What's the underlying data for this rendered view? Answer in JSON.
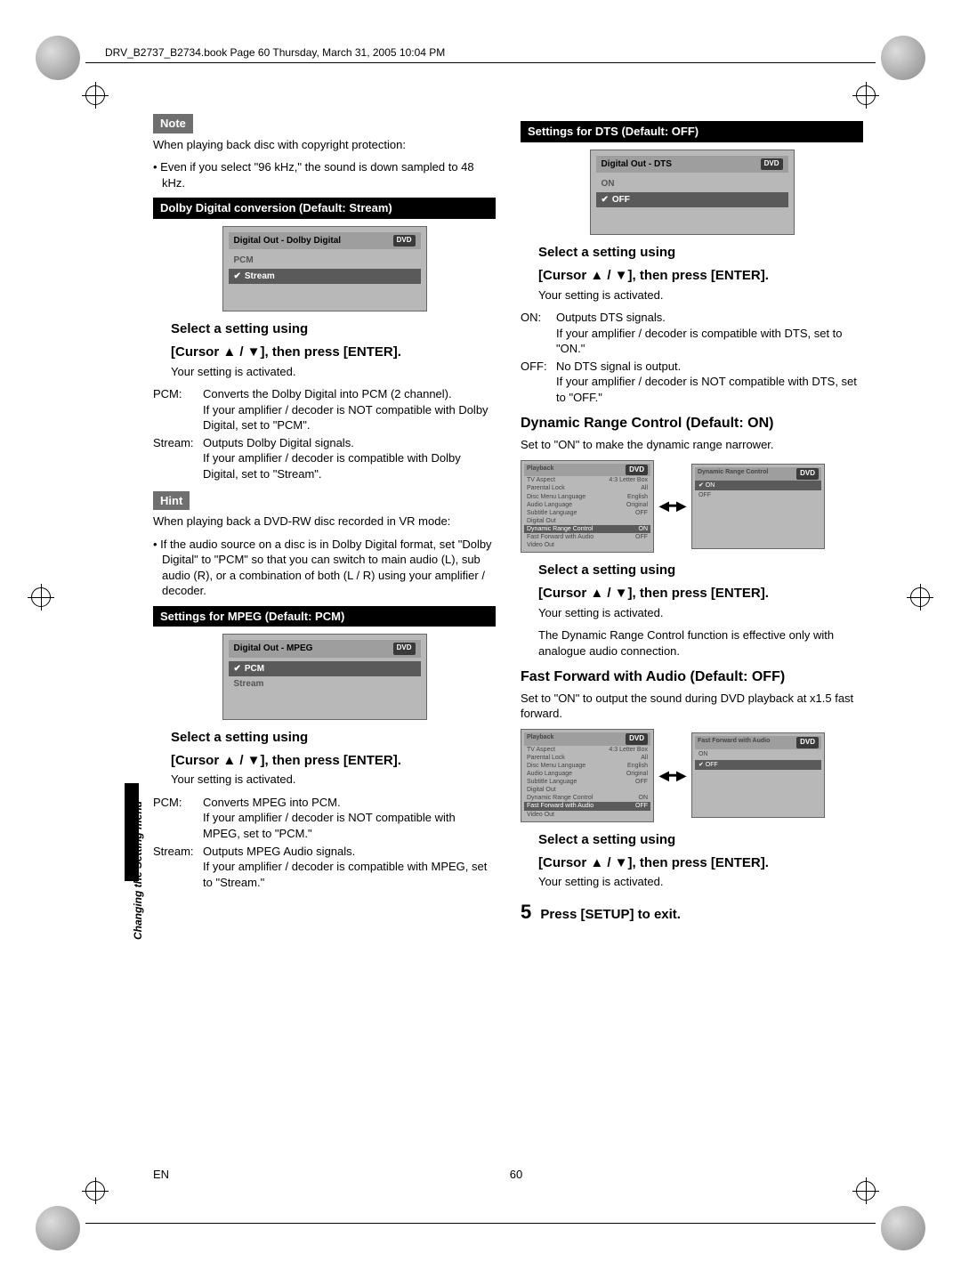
{
  "header_path": "DRV_B2737_B2734.book  Page 60  Thursday, March 31, 2005  10:04 PM",
  "page_number": "60",
  "lang_code": "EN",
  "side_caption": "Changing the Setting menu",
  "left": {
    "note_label": "Note",
    "note_intro": "When playing back disc with copyright protection:",
    "note_bullet": "• Even if you select \"96 kHz,\" the sound is down sampled to 48 kHz.",
    "bar_dolby": "Dolby Digital conversion (Default: Stream)",
    "osd_dolby": {
      "title": "Digital Out - Dolby Digital",
      "badge": "DVD",
      "opts": [
        "PCM",
        "Stream"
      ],
      "selected": "Stream"
    },
    "instr_line1": "Select a setting using",
    "instr_line2": "[Cursor ▲ / ▼], then press [ENTER].",
    "instr_sub": "Your setting is activated.",
    "def_pcm_key": "PCM:",
    "def_pcm_val": "Converts the Dolby Digital into PCM (2 channel).\nIf your amplifier / decoder is NOT compatible with Dolby Digital, set to \"PCM\".",
    "def_stream_key": "Stream:",
    "def_stream_val": "Outputs Dolby Digital signals.\nIf your amplifier / decoder is compatible with Dolby Digital, set to \"Stream\".",
    "hint_label": "Hint",
    "hint_intro": "When playing back a DVD-RW disc recorded in VR mode:",
    "hint_bullet": "• If the audio source on a disc is in Dolby Digital format, set \"Dolby Digital\" to \"PCM\" so that you can switch to main audio (L), sub audio (R), or a combination of both (L / R) using your amplifier / decoder.",
    "bar_mpeg": "Settings for MPEG (Default: PCM)",
    "osd_mpeg": {
      "title": "Digital Out - MPEG",
      "badge": "DVD",
      "opts": [
        "PCM",
        "Stream"
      ],
      "selected": "PCM"
    },
    "def2_pcm_key": "PCM:",
    "def2_pcm_val": "Converts MPEG into PCM.\nIf your amplifier / decoder is NOT compatible with MPEG, set to \"PCM.\"",
    "def2_stream_key": "Stream:",
    "def2_stream_val": "Outputs MPEG Audio signals.\nIf your amplifier / decoder is compatible with MPEG, set to \"Stream.\""
  },
  "right": {
    "bar_dts": "Settings for DTS (Default: OFF)",
    "osd_dts": {
      "title": "Digital Out - DTS",
      "badge": "DVD",
      "opts": [
        "ON",
        "OFF"
      ],
      "selected": "OFF"
    },
    "instr_line1": "Select a setting using",
    "instr_line2": "[Cursor ▲ / ▼], then press [ENTER].",
    "instr_sub": "Your setting is activated.",
    "def_on_key": "ON:",
    "def_on_val": "Outputs DTS signals.\nIf your amplifier / decoder is compatible with DTS, set to \"ON.\"",
    "def_off_key": "OFF:",
    "def_off_val": "No DTS signal is output.\nIf your amplifier / decoder is NOT compatible with DTS, set to \"OFF.\"",
    "h3_drc": "Dynamic Range Control (Default: ON)",
    "drc_text": "Set to \"ON\" to make the dynamic range narrower.",
    "playback_menu": {
      "title": "Playback",
      "badge": "DVD",
      "rows": [
        [
          "TV Aspect",
          "4:3 Letter Box"
        ],
        [
          "Parental Lock",
          "All"
        ],
        [
          "Disc Menu Language",
          "English"
        ],
        [
          "Audio Language",
          "Original"
        ],
        [
          "Subtitle Language",
          "OFF"
        ],
        [
          "Digital Out",
          ""
        ],
        [
          "Dynamic Range Control",
          "ON"
        ],
        [
          "Fast Forward with Audio",
          "OFF"
        ],
        [
          "Video Out",
          ""
        ]
      ],
      "highlight_idx": 6
    },
    "drc_submenu": {
      "title": "Dynamic Range Control",
      "badge": "DVD",
      "opts": [
        "ON",
        "OFF"
      ],
      "selected": "ON"
    },
    "drc_note": "The Dynamic Range Control function is effective only with analogue audio connection.",
    "h3_ff": "Fast Forward with Audio (Default: OFF)",
    "ff_text": "Set to \"ON\" to output the sound during DVD playback at x1.5 fast forward.",
    "playback_menu2_highlight_idx": 7,
    "ff_submenu": {
      "title": "Fast Forward with Audio",
      "badge": "DVD",
      "opts": [
        "ON",
        "OFF"
      ],
      "selected": "OFF"
    },
    "step5_num": "5",
    "step5_text": "Press [SETUP] to exit."
  }
}
